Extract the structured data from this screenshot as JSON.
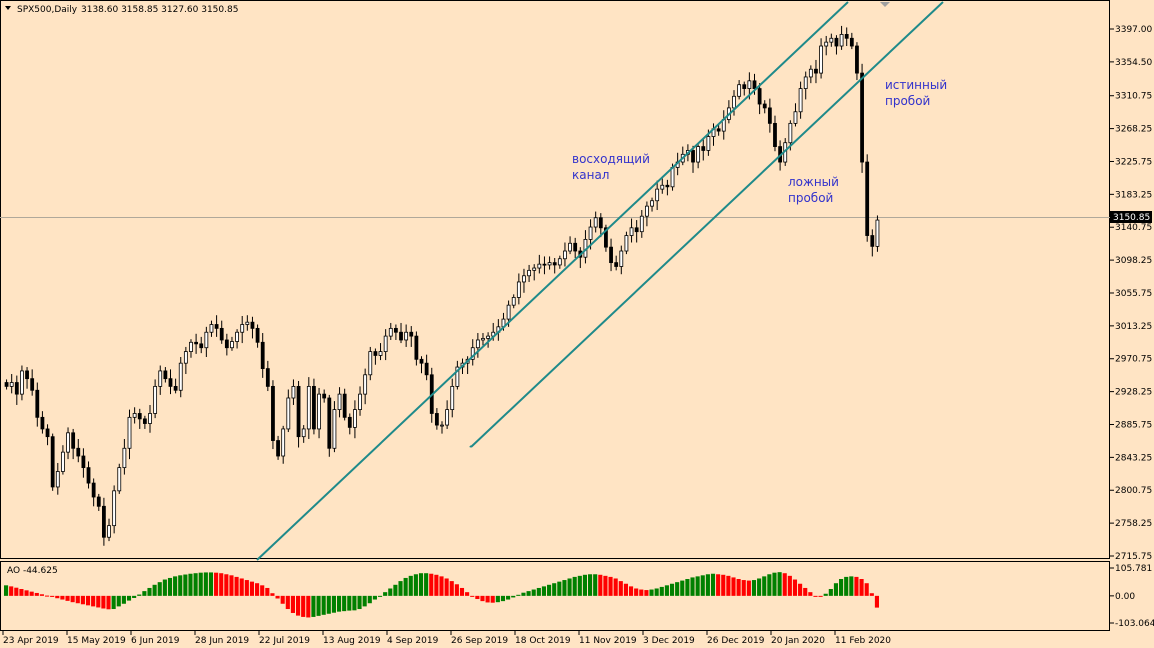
{
  "header": {
    "symbol": "SPX500,Daily",
    "ohlc": "3138.60 3158.85 3127.60 3150.85"
  },
  "colors": {
    "background": "#FFE4C4",
    "candle": "#000000",
    "channel": "#1F8A8A",
    "ao_up": "#008000",
    "ao_down": "#FF0000",
    "annotation": "#3333CC"
  },
  "chart_data": [
    {
      "type": "candlestick",
      "title": "",
      "ylim": [
        2700,
        3420
      ],
      "y_ticks": [
        "3397.00",
        "3354.50",
        "3310.75",
        "3268.25",
        "3225.75",
        "3183.25",
        "3140.75",
        "3098.25",
        "3055.75",
        "3013.25",
        "2970.75",
        "2928.25",
        "2885.75",
        "2843.25",
        "2800.75",
        "2758.25",
        "2715.75"
      ],
      "current_price": "3150.85",
      "x_labels": [
        "23 Apr 2019",
        "15 May 2019",
        "6 Jun 2019",
        "28 Jun 2019",
        "22 Jul 2019",
        "13 Aug 2019",
        "4 Sep 2019",
        "26 Sep 2019",
        "18 Oct 2019",
        "11 Nov 2019",
        "3 Dec 2019",
        "26 Dec 2019",
        "20 Jan 2020",
        "11 Feb 2020"
      ],
      "closes": [
        2935,
        2940,
        2925,
        2955,
        2945,
        2930,
        2895,
        2880,
        2870,
        2805,
        2825,
        2850,
        2875,
        2855,
        2845,
        2830,
        2810,
        2792,
        2780,
        2740,
        2755,
        2800,
        2830,
        2855,
        2895,
        2900,
        2893,
        2887,
        2900,
        2935,
        2955,
        2945,
        2935,
        2930,
        2965,
        2980,
        2992,
        2990,
        2985,
        3005,
        3015,
        3010,
        2995,
        2985,
        2993,
        3005,
        3015,
        3018,
        3010,
        2992,
        2958,
        2935,
        2865,
        2845,
        2880,
        2920,
        2935,
        2870,
        2880,
        2935,
        2880,
        2925,
        2920,
        2855,
        2905,
        2925,
        2895,
        2882,
        2905,
        2925,
        2950,
        2980,
        2975,
        2980,
        3000,
        3010,
        3005,
        2995,
        3005,
        3000,
        2970,
        2965,
        2950,
        2900,
        2885,
        2885,
        2905,
        2935,
        2960,
        2965,
        2970,
        2985,
        2995,
        2997,
        3000,
        3005,
        3012,
        3022,
        3040,
        3050,
        3070,
        3078,
        3085,
        3088,
        3093,
        3092,
        3095,
        3092,
        3100,
        3110,
        3120,
        3110,
        3102,
        3125,
        3141,
        3153,
        3140,
        3115,
        3095,
        3090,
        3110,
        3130,
        3140,
        3135,
        3155,
        3168,
        3175,
        3190,
        3195,
        3193,
        3218,
        3225,
        3235,
        3240,
        3225,
        3245,
        3240,
        3258,
        3268,
        3265,
        3280,
        3295,
        3310,
        3325,
        3320,
        3330,
        3320,
        3300,
        3295,
        3275,
        3245,
        3225,
        3250,
        3275,
        3290,
        3320,
        3335,
        3345,
        3340,
        3375,
        3380,
        3385,
        3375,
        3390,
        3385,
        3375,
        3340,
        3225,
        3130,
        3116,
        3150
      ]
    },
    {
      "type": "bar",
      "title": "AO -44.625",
      "name": "AO",
      "current_value": -44.625,
      "ylim": [
        -103.064,
        105.781
      ],
      "y_ticks": [
        "105.781",
        "0.00",
        "-103.064"
      ],
      "values": [
        40,
        36,
        31,
        26,
        21,
        16,
        11,
        6,
        1,
        -4,
        -9,
        -14,
        -19,
        -24,
        -28,
        -32,
        -36,
        -40,
        -44,
        -48,
        -51,
        -50,
        -40,
        -30,
        -18,
        -8,
        5,
        18,
        30,
        42,
        52,
        62,
        68,
        74,
        78,
        81,
        84,
        86,
        88,
        89,
        89,
        88,
        86,
        82,
        78,
        72,
        66,
        60,
        54,
        48,
        40,
        30,
        10,
        -10,
        -30,
        -50,
        -65,
        -75,
        -80,
        -82,
        -80,
        -76,
        -72,
        -68,
        -64,
        -60,
        -58,
        -56,
        -55,
        -50,
        -40,
        -28,
        -14,
        0,
        14,
        28,
        42,
        56,
        68,
        76,
        82,
        86,
        86,
        84,
        80,
        74,
        66,
        56,
        44,
        30,
        14,
        -2,
        -12,
        -20,
        -25,
        -26,
        -24,
        -20,
        -14,
        -6,
        4,
        12,
        18,
        24,
        30,
        36,
        42,
        48,
        54,
        60,
        66,
        72,
        76,
        80,
        82,
        82,
        80,
        76,
        72,
        66,
        56,
        46,
        36,
        28,
        24,
        22,
        24,
        28,
        34,
        40,
        46,
        52,
        58,
        64,
        70,
        74,
        78,
        82,
        84,
        82,
        80,
        76,
        70,
        64,
        60,
        58,
        60,
        66,
        74,
        82,
        88,
        90,
        86,
        76,
        62,
        46,
        30,
        14,
        0,
        -2,
        8,
        26,
        48,
        64,
        72,
        74,
        72,
        64,
        48,
        10,
        -44.625
      ]
    }
  ],
  "annotations": {
    "channel_label_1": "восходящий",
    "channel_label_2": "канал",
    "false_break_1": "ложный",
    "false_break_2": "пробой",
    "true_break_1": "истинный",
    "true_break_2": "пробой"
  }
}
